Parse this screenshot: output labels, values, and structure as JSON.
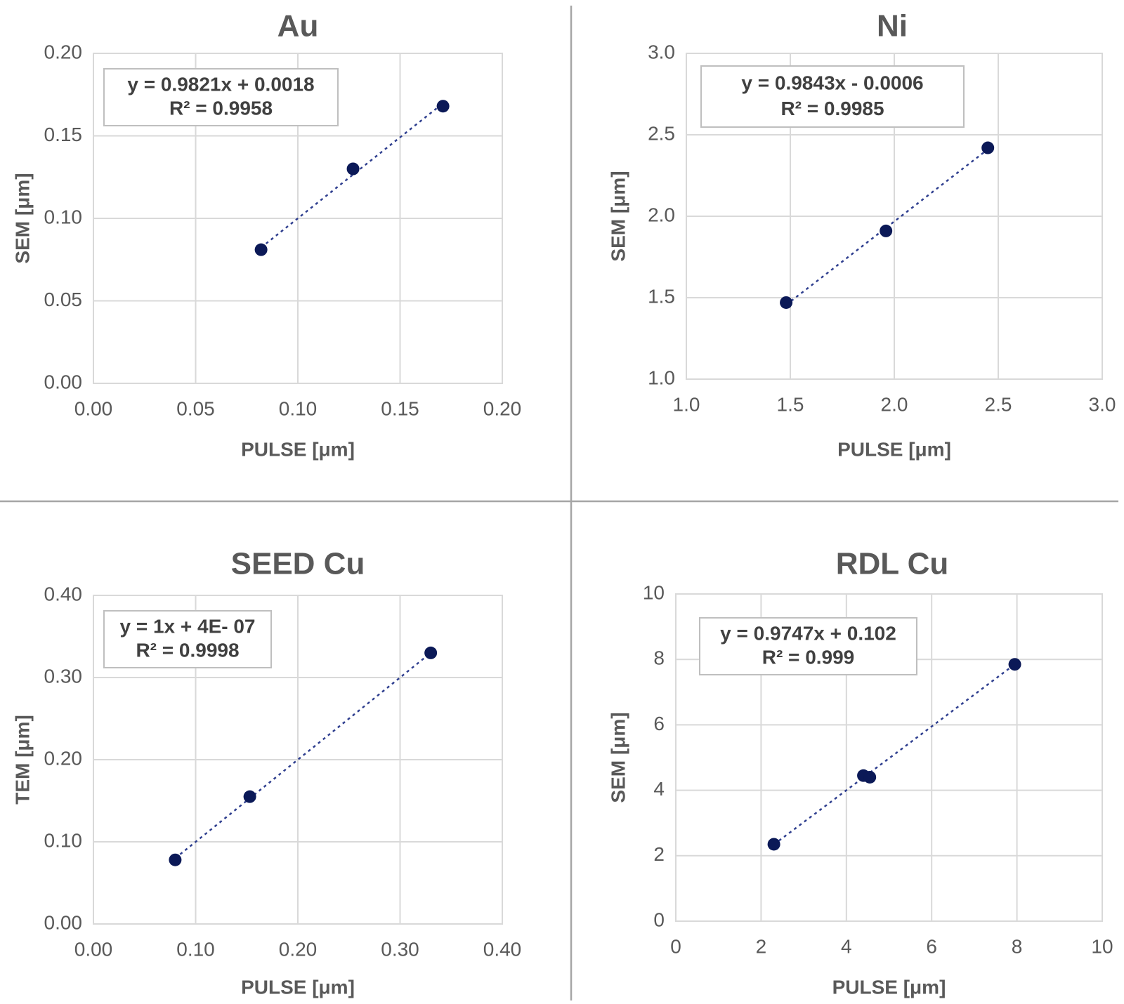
{
  "chart_data": [
    {
      "type": "scatter",
      "title": "Au",
      "xlabel": "PULSE [μm]",
      "ylabel": "SEM [μm]",
      "xlim": [
        0,
        0.2
      ],
      "ylim": [
        0,
        0.2
      ],
      "xticks": [
        "0.00",
        "0.05",
        "0.10",
        "0.15",
        "0.20"
      ],
      "yticks": [
        "0.00",
        "0.05",
        "0.10",
        "0.15",
        "0.20"
      ],
      "grid": true,
      "series": [
        {
          "x": [
            0.082,
            0.127,
            0.171
          ],
          "y": [
            0.081,
            0.13,
            0.168
          ]
        }
      ],
      "trendline": {
        "type": "linear",
        "slope": 0.9821,
        "intercept": 0.0018
      },
      "equation": "y = 0.9821x + 0.0018",
      "r_squared": "R² = 0.9958"
    },
    {
      "type": "scatter",
      "title": "Ni",
      "xlabel": "PULSE [μm]",
      "ylabel": "SEM [μm]",
      "xlim": [
        1.0,
        3.0
      ],
      "ylim": [
        1.0,
        3.0
      ],
      "xticks": [
        "1.0",
        "1.5",
        "2.0",
        "2.5",
        "3.0"
      ],
      "yticks": [
        "1.0",
        "1.5",
        "2.0",
        "2.5",
        "3.0"
      ],
      "grid": true,
      "series": [
        {
          "x": [
            1.48,
            1.96,
            2.45
          ],
          "y": [
            1.47,
            1.91,
            2.42
          ]
        }
      ],
      "trendline": {
        "type": "linear",
        "slope": 0.9843,
        "intercept": -0.0006
      },
      "equation": "y = 0.9843x - 0.0006",
      "r_squared": "R² = 0.9985"
    },
    {
      "type": "scatter",
      "title": "SEED Cu",
      "xlabel": "PULSE [μm]",
      "ylabel": "TEM [μm]",
      "xlim": [
        0,
        0.4
      ],
      "ylim": [
        0,
        0.4
      ],
      "xticks": [
        "0.00",
        "0.10",
        "0.20",
        "0.30",
        "0.40"
      ],
      "yticks": [
        "0.00",
        "0.10",
        "0.20",
        "0.30",
        "0.40"
      ],
      "grid": true,
      "series": [
        {
          "x": [
            0.08,
            0.153,
            0.33
          ],
          "y": [
            0.078,
            0.155,
            0.33
          ]
        }
      ],
      "trendline": {
        "type": "linear",
        "slope": 1,
        "intercept": 4e-07
      },
      "equation": "y = 1x + 4E- 07",
      "r_squared": "R² = 0.9998"
    },
    {
      "type": "scatter",
      "title": "RDL Cu",
      "xlabel": "PULSE [μm]",
      "ylabel": "SEM [μm]",
      "xlim": [
        0,
        10
      ],
      "ylim": [
        0,
        10
      ],
      "xticks": [
        "0",
        "2",
        "4",
        "6",
        "8",
        "10"
      ],
      "yticks": [
        "0",
        "2",
        "4",
        "6",
        "8",
        "10"
      ],
      "grid": true,
      "series": [
        {
          "x": [
            2.3,
            4.4,
            4.55,
            7.95
          ],
          "y": [
            2.35,
            4.45,
            4.4,
            7.85
          ]
        }
      ],
      "trendline": {
        "type": "linear",
        "slope": 0.9747,
        "intercept": 0.102
      },
      "equation": "y = 0.9747x + 0.102",
      "r_squared": "R² = 0.999"
    }
  ],
  "colors": {
    "marker": "#0b1957",
    "trendline": "#2f3f8f",
    "gridline": "#d9d9d9",
    "text": "#595959",
    "divider": "#a6a6a6"
  }
}
